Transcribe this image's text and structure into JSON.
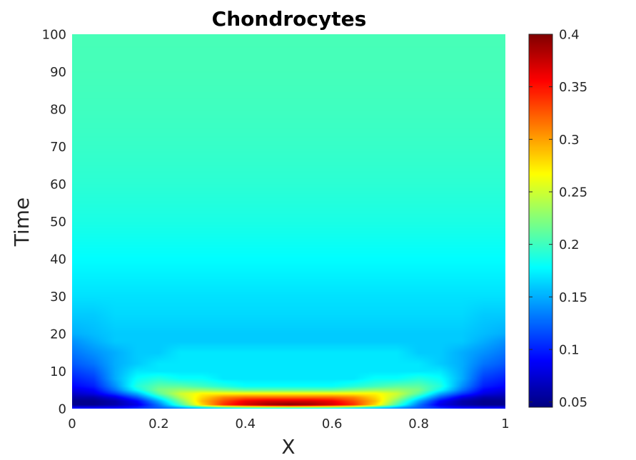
{
  "chart_data": {
    "type": "heatmap",
    "title": "Chondrocytes",
    "xlabel": "X",
    "ylabel": "Time",
    "xlim": [
      0,
      1
    ],
    "ylim": [
      0,
      100
    ],
    "xticks": [
      "0",
      "0.2",
      "0.4",
      "0.6",
      "0.8",
      "1"
    ],
    "yticks": [
      "0",
      "10",
      "20",
      "30",
      "40",
      "50",
      "60",
      "70",
      "80",
      "90",
      "100"
    ],
    "colorbar": {
      "colormap": "jet",
      "range": [
        0.045,
        0.4
      ],
      "ticks": [
        "0.05",
        "0.1",
        "0.15",
        "0.2",
        "0.25",
        "0.3",
        "0.35",
        "0.4"
      ]
    },
    "x": [
      0,
      0.05,
      0.1,
      0.15,
      0.2,
      0.25,
      0.3,
      0.35,
      0.4,
      0.45,
      0.5,
      0.55,
      0.6,
      0.65,
      0.7,
      0.75,
      0.8,
      0.85,
      0.9,
      0.95,
      1
    ],
    "time": [
      0,
      1,
      2,
      3,
      4,
      5,
      6,
      8,
      10,
      12,
      15,
      18,
      20,
      25,
      30,
      40,
      50,
      60,
      70,
      80,
      90,
      100
    ],
    "z": [
      [
        0.1,
        0.1,
        0.1,
        0.11,
        0.12,
        0.13,
        0.14,
        0.15,
        0.16,
        0.16,
        0.16,
        0.16,
        0.16,
        0.15,
        0.14,
        0.13,
        0.12,
        0.11,
        0.1,
        0.1,
        0.1
      ],
      [
        0.05,
        0.05,
        0.06,
        0.08,
        0.13,
        0.2,
        0.28,
        0.34,
        0.37,
        0.39,
        0.4,
        0.39,
        0.37,
        0.34,
        0.28,
        0.2,
        0.13,
        0.08,
        0.06,
        0.05,
        0.05
      ],
      [
        0.05,
        0.05,
        0.06,
        0.09,
        0.15,
        0.22,
        0.29,
        0.33,
        0.36,
        0.37,
        0.37,
        0.37,
        0.36,
        0.33,
        0.29,
        0.22,
        0.15,
        0.09,
        0.06,
        0.05,
        0.05
      ],
      [
        0.06,
        0.06,
        0.08,
        0.12,
        0.18,
        0.24,
        0.28,
        0.31,
        0.32,
        0.32,
        0.32,
        0.32,
        0.32,
        0.31,
        0.28,
        0.24,
        0.18,
        0.12,
        0.08,
        0.06,
        0.06
      ],
      [
        0.07,
        0.08,
        0.11,
        0.15,
        0.21,
        0.25,
        0.27,
        0.27,
        0.27,
        0.27,
        0.27,
        0.27,
        0.27,
        0.27,
        0.27,
        0.25,
        0.21,
        0.15,
        0.11,
        0.08,
        0.07
      ],
      [
        0.08,
        0.09,
        0.13,
        0.18,
        0.22,
        0.23,
        0.23,
        0.22,
        0.21,
        0.21,
        0.21,
        0.21,
        0.21,
        0.22,
        0.23,
        0.23,
        0.22,
        0.18,
        0.13,
        0.09,
        0.08
      ],
      [
        0.09,
        0.1,
        0.14,
        0.19,
        0.21,
        0.21,
        0.2,
        0.19,
        0.18,
        0.18,
        0.18,
        0.18,
        0.18,
        0.19,
        0.2,
        0.21,
        0.21,
        0.19,
        0.14,
        0.1,
        0.09
      ],
      [
        0.1,
        0.11,
        0.15,
        0.18,
        0.19,
        0.18,
        0.18,
        0.17,
        0.17,
        0.17,
        0.17,
        0.17,
        0.17,
        0.17,
        0.18,
        0.18,
        0.19,
        0.18,
        0.15,
        0.11,
        0.1
      ],
      [
        0.11,
        0.12,
        0.15,
        0.17,
        0.17,
        0.17,
        0.17,
        0.17,
        0.17,
        0.17,
        0.17,
        0.17,
        0.17,
        0.17,
        0.17,
        0.17,
        0.17,
        0.17,
        0.15,
        0.12,
        0.11
      ],
      [
        0.12,
        0.13,
        0.15,
        0.16,
        0.17,
        0.17,
        0.17,
        0.17,
        0.17,
        0.17,
        0.17,
        0.17,
        0.17,
        0.17,
        0.17,
        0.17,
        0.17,
        0.16,
        0.15,
        0.13,
        0.12
      ],
      [
        0.13,
        0.14,
        0.15,
        0.16,
        0.16,
        0.17,
        0.17,
        0.17,
        0.17,
        0.17,
        0.17,
        0.17,
        0.17,
        0.17,
        0.17,
        0.17,
        0.16,
        0.16,
        0.15,
        0.14,
        0.13
      ],
      [
        0.14,
        0.15,
        0.16,
        0.16,
        0.16,
        0.16,
        0.16,
        0.16,
        0.16,
        0.16,
        0.16,
        0.16,
        0.16,
        0.16,
        0.16,
        0.16,
        0.16,
        0.16,
        0.16,
        0.15,
        0.14
      ],
      [
        0.15,
        0.155,
        0.16,
        0.16,
        0.16,
        0.16,
        0.16,
        0.16,
        0.16,
        0.16,
        0.16,
        0.16,
        0.16,
        0.16,
        0.16,
        0.16,
        0.16,
        0.16,
        0.16,
        0.155,
        0.15
      ],
      [
        0.16,
        0.16,
        0.165,
        0.165,
        0.165,
        0.165,
        0.165,
        0.165,
        0.165,
        0.165,
        0.165,
        0.165,
        0.165,
        0.165,
        0.165,
        0.165,
        0.165,
        0.165,
        0.165,
        0.16,
        0.16
      ],
      [
        0.168,
        0.168,
        0.168,
        0.168,
        0.168,
        0.168,
        0.168,
        0.168,
        0.168,
        0.168,
        0.168,
        0.168,
        0.168,
        0.168,
        0.168,
        0.168,
        0.168,
        0.168,
        0.168,
        0.168,
        0.168
      ],
      [
        0.178,
        0.178,
        0.178,
        0.178,
        0.178,
        0.178,
        0.178,
        0.178,
        0.178,
        0.178,
        0.178,
        0.178,
        0.178,
        0.178,
        0.178,
        0.178,
        0.178,
        0.178,
        0.178,
        0.178,
        0.178
      ],
      [
        0.187,
        0.187,
        0.187,
        0.187,
        0.187,
        0.187,
        0.187,
        0.187,
        0.187,
        0.187,
        0.187,
        0.187,
        0.187,
        0.187,
        0.187,
        0.187,
        0.187,
        0.187,
        0.187,
        0.187,
        0.187
      ],
      [
        0.193,
        0.193,
        0.193,
        0.193,
        0.193,
        0.193,
        0.193,
        0.193,
        0.193,
        0.193,
        0.193,
        0.193,
        0.193,
        0.193,
        0.193,
        0.193,
        0.193,
        0.193,
        0.193,
        0.193,
        0.193
      ],
      [
        0.197,
        0.197,
        0.197,
        0.197,
        0.197,
        0.197,
        0.197,
        0.197,
        0.197,
        0.197,
        0.197,
        0.197,
        0.197,
        0.197,
        0.197,
        0.197,
        0.197,
        0.197,
        0.197,
        0.197,
        0.197
      ],
      [
        0.2,
        0.2,
        0.2,
        0.2,
        0.2,
        0.2,
        0.2,
        0.2,
        0.2,
        0.2,
        0.2,
        0.2,
        0.2,
        0.2,
        0.2,
        0.2,
        0.2,
        0.2,
        0.2,
        0.2,
        0.2
      ],
      [
        0.202,
        0.202,
        0.202,
        0.202,
        0.202,
        0.202,
        0.202,
        0.202,
        0.202,
        0.202,
        0.202,
        0.202,
        0.202,
        0.202,
        0.202,
        0.202,
        0.202,
        0.202,
        0.202,
        0.202,
        0.202
      ],
      [
        0.203,
        0.203,
        0.203,
        0.203,
        0.203,
        0.203,
        0.203,
        0.203,
        0.203,
        0.203,
        0.203,
        0.203,
        0.203,
        0.203,
        0.203,
        0.203,
        0.203,
        0.203,
        0.203,
        0.203,
        0.203
      ]
    ]
  }
}
